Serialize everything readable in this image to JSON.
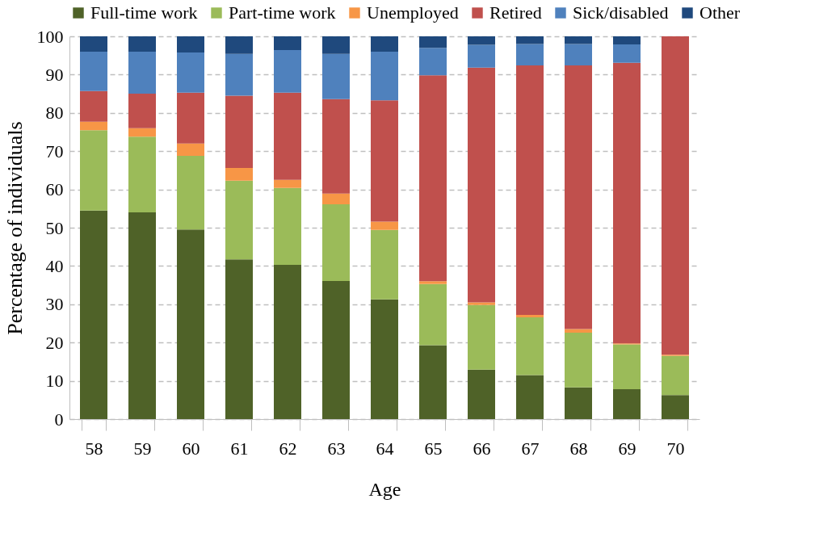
{
  "chart_data": {
    "type": "bar",
    "stacked": true,
    "xlabel": "Age",
    "ylabel": "Percentage of individuals",
    "categories": [
      "58",
      "59",
      "60",
      "61",
      "62",
      "63",
      "64",
      "65",
      "66",
      "67",
      "68",
      "69",
      "70"
    ],
    "series": [
      {
        "name": "Full-time work",
        "color": "#4f6228",
        "values": [
          54.5,
          54,
          49.5,
          41.7,
          40.3,
          36.1,
          31.3,
          19.3,
          12.9,
          11.5,
          8.3,
          7.8,
          6.3
        ]
      },
      {
        "name": "Part-time work",
        "color": "#9bbb59",
        "values": [
          21,
          19.8,
          19.3,
          20.6,
          20.1,
          20,
          18.1,
          16,
          16.9,
          15.1,
          14.3,
          11.7,
          10.2
        ]
      },
      {
        "name": "Unemployed",
        "color": "#f79646",
        "values": [
          2.2,
          2.2,
          3.2,
          3.3,
          2.1,
          2.8,
          2.2,
          0.7,
          0.7,
          0.6,
          0.9,
          0.3,
          0.3
        ]
      },
      {
        "name": "Retired",
        "color": "#c0504d",
        "values": [
          8,
          9,
          13.3,
          18.9,
          22.8,
          24.7,
          31.7,
          53.8,
          61.3,
          65.2,
          68.9,
          73.3,
          83.2
        ]
      },
      {
        "name": "Sick/disabled",
        "color": "#4f81bd",
        "values": [
          10.3,
          11,
          10.5,
          10.9,
          11.1,
          11.8,
          12.7,
          7.2,
          6,
          5.6,
          5.6,
          4.8,
          0
        ]
      },
      {
        "name": "Other",
        "color": "#1f497d",
        "values": [
          4,
          4,
          4.2,
          4.6,
          3.6,
          4.6,
          4,
          3,
          2.2,
          2,
          2,
          2.1,
          0
        ]
      }
    ],
    "ylim": [
      0,
      100
    ],
    "yticks": [
      0,
      10,
      20,
      30,
      40,
      50,
      60,
      70,
      80,
      90,
      100
    ],
    "grid": "y",
    "legend": "top"
  }
}
